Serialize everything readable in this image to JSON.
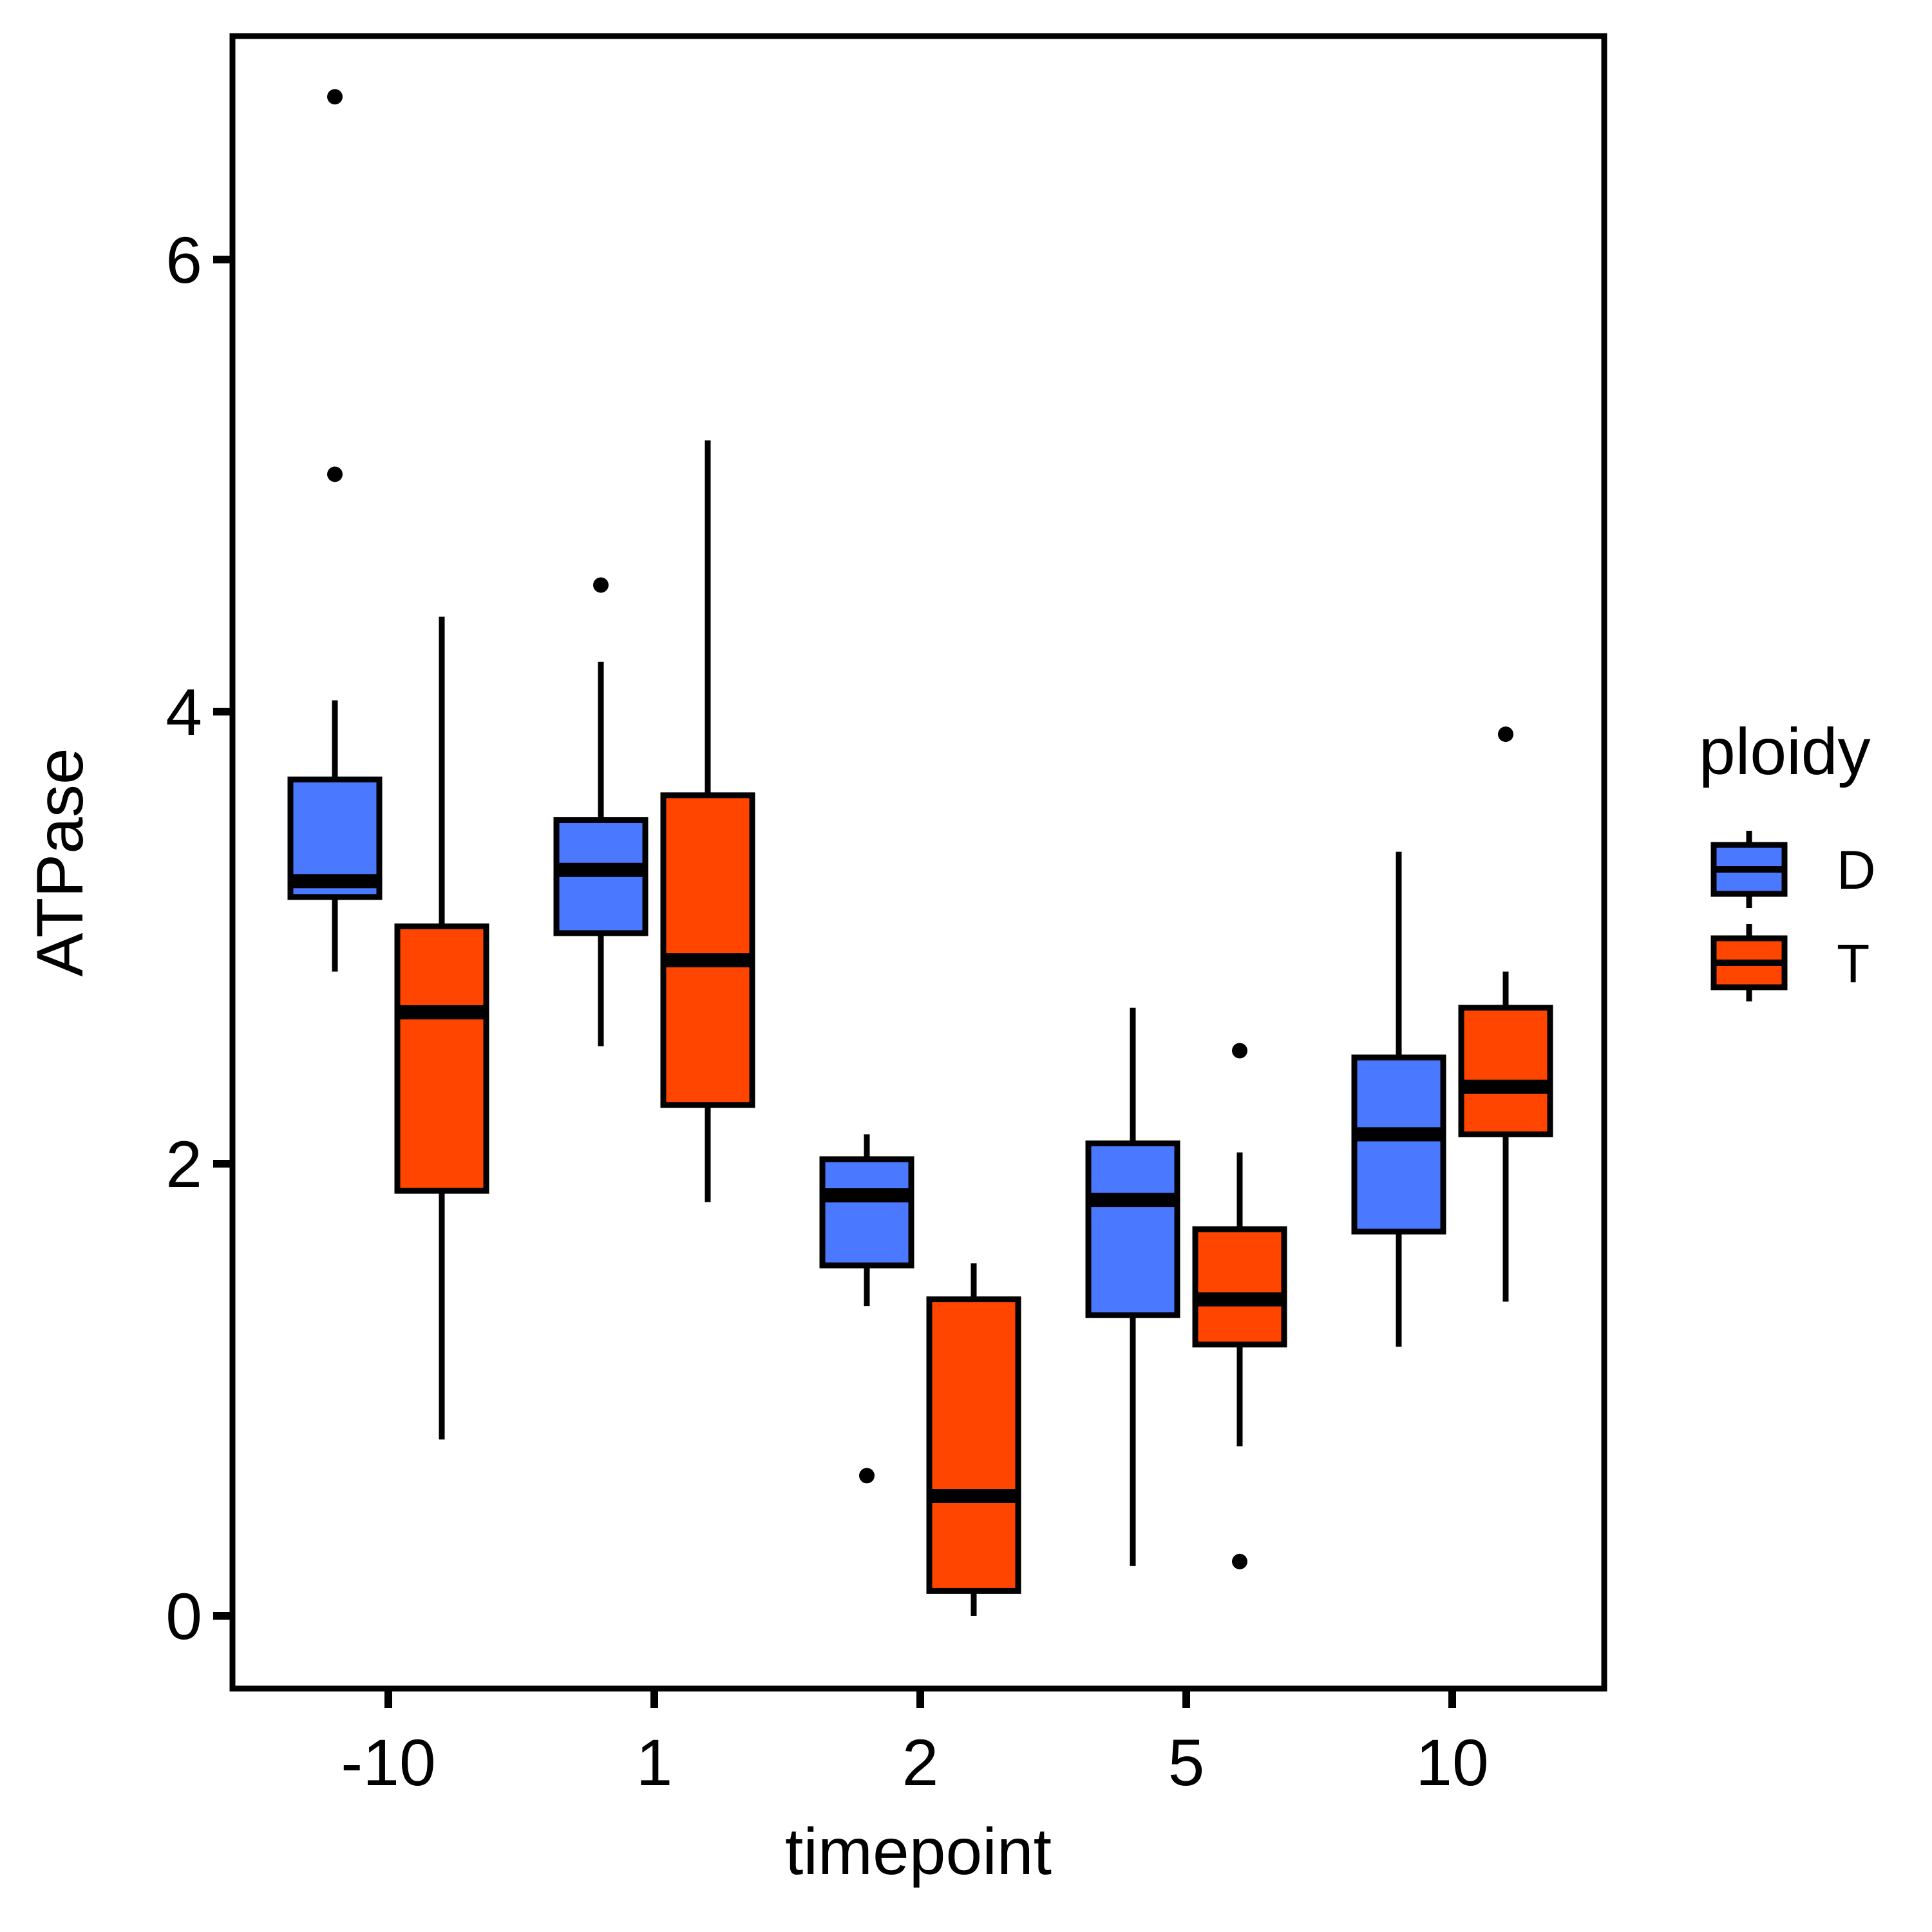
{
  "chart_data": {
    "type": "boxplot",
    "title": "",
    "xlabel": "timepoint",
    "ylabel": "ATPase",
    "categories": [
      "-10",
      "1",
      "2",
      "5",
      "10"
    ],
    "yticks": [
      0,
      2,
      4,
      6
    ],
    "ytick_labels": [
      "0",
      "2",
      "4",
      "6"
    ],
    "ylim": [
      -0.3,
      7.0
    ],
    "grid": false,
    "legend": {
      "title": "ploidy",
      "position": "right"
    },
    "series": [
      {
        "name": "D",
        "color": "#4a78ff",
        "boxes": [
          {
            "whisker_low": 2.85,
            "q1": 3.18,
            "median": 3.25,
            "q3": 3.7,
            "whisker_high": 4.05,
            "outliers": [
              5.05,
              6.72
            ]
          },
          {
            "whisker_low": 2.52,
            "q1": 3.02,
            "median": 3.3,
            "q3": 3.52,
            "whisker_high": 4.22,
            "outliers": [
              4.56
            ]
          },
          {
            "whisker_low": 1.37,
            "q1": 1.55,
            "median": 1.86,
            "q3": 2.02,
            "whisker_high": 2.13,
            "outliers": [
              0.62
            ]
          },
          {
            "whisker_low": 0.22,
            "q1": 1.33,
            "median": 1.84,
            "q3": 2.09,
            "whisker_high": 2.69,
            "outliers": []
          },
          {
            "whisker_low": 1.19,
            "q1": 1.7,
            "median": 2.13,
            "q3": 2.47,
            "whisker_high": 3.38,
            "outliers": []
          }
        ]
      },
      {
        "name": "T",
        "color": "#ff4500",
        "boxes": [
          {
            "whisker_low": 0.78,
            "q1": 1.88,
            "median": 2.67,
            "q3": 3.05,
            "whisker_high": 4.42,
            "outliers": []
          },
          {
            "whisker_low": 1.83,
            "q1": 2.26,
            "median": 2.9,
            "q3": 3.63,
            "whisker_high": 5.2,
            "outliers": []
          },
          {
            "whisker_low": 0.0,
            "q1": 0.11,
            "median": 0.53,
            "q3": 1.4,
            "whisker_high": 1.56,
            "outliers": []
          },
          {
            "whisker_low": 0.75,
            "q1": 1.2,
            "median": 1.4,
            "q3": 1.71,
            "whisker_high": 2.05,
            "outliers": [
              0.24,
              2.5
            ]
          },
          {
            "whisker_low": 1.39,
            "q1": 2.13,
            "median": 2.34,
            "q3": 2.69,
            "whisker_high": 2.85,
            "outliers": [
              3.9
            ]
          }
        ]
      }
    ]
  }
}
